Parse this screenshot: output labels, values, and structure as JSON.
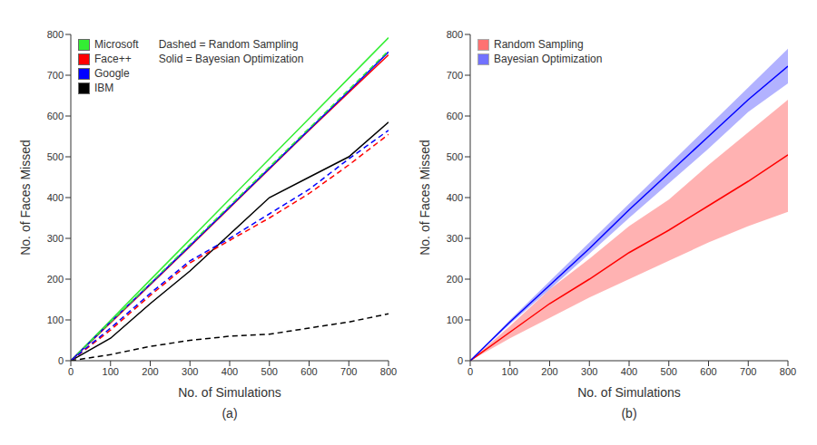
{
  "chart_data": [
    {
      "type": "line",
      "caption": "(a)",
      "x_label": "No. of Simulations",
      "y_label": "No. of Faces Missed",
      "x": [
        0,
        100,
        200,
        300,
        400,
        500,
        600,
        700,
        800
      ],
      "xlim": [
        0,
        800
      ],
      "ylim": [
        0,
        800
      ],
      "xticks": [
        0,
        100,
        200,
        300,
        400,
        500,
        600,
        700,
        800
      ],
      "yticks": [
        0,
        100,
        200,
        300,
        400,
        500,
        600,
        700,
        800
      ],
      "grid": false,
      "legend": "upper left",
      "legend_notes": [
        "Dashed = Random Sampling",
        "Solid = Bayesian Optimization"
      ],
      "series": [
        {
          "name": "Microsoft",
          "color": "#33ee33",
          "line_style": "solid",
          "values": [
            0,
            99,
            198,
            297,
            396,
            495,
            594,
            693,
            792
          ]
        },
        {
          "name": "Face++",
          "color": "#ff0000",
          "line_style": "solid",
          "values": [
            0,
            93,
            186,
            280,
            375,
            470,
            565,
            658,
            750
          ]
        },
        {
          "name": "Google",
          "color": "#0000ff",
          "line_style": "solid",
          "values": [
            0,
            95,
            188,
            282,
            377,
            472,
            567,
            661,
            757
          ]
        },
        {
          "name": "IBM",
          "color": "#000000",
          "line_style": "solid",
          "values": [
            0,
            55,
            140,
            220,
            310,
            400,
            450,
            500,
            585
          ]
        },
        {
          "name": "Microsoft",
          "color": "#33ee33",
          "line_style": "dashed",
          "values": [
            0,
            95,
            190,
            285,
            380,
            475,
            570,
            665,
            760
          ]
        },
        {
          "name": "Face++",
          "color": "#ff0000",
          "line_style": "dashed",
          "values": [
            0,
            75,
            160,
            240,
            295,
            350,
            410,
            480,
            555
          ]
        },
        {
          "name": "Google",
          "color": "#0000ff",
          "line_style": "dashed",
          "values": [
            0,
            80,
            165,
            245,
            300,
            360,
            420,
            495,
            565
          ]
        },
        {
          "name": "IBM",
          "color": "#000000",
          "line_style": "dashed",
          "values": [
            0,
            15,
            35,
            50,
            60,
            65,
            80,
            95,
            115
          ]
        }
      ]
    },
    {
      "type": "line",
      "caption": "(b)",
      "x_label": "No. of Simulations",
      "y_label": "No. of Faces Missed",
      "x": [
        0,
        100,
        200,
        300,
        400,
        500,
        600,
        700,
        800
      ],
      "xlim": [
        0,
        800
      ],
      "ylim": [
        0,
        800
      ],
      "xticks": [
        0,
        100,
        200,
        300,
        400,
        500,
        600,
        700,
        800
      ],
      "yticks": [
        0,
        100,
        200,
        300,
        400,
        500,
        600,
        700,
        800
      ],
      "grid": false,
      "legend": "upper left",
      "series": [
        {
          "name": "Random Sampling",
          "color": "#ff0000",
          "line_style": "solid",
          "values": [
            0,
            70,
            140,
            200,
            265,
            320,
            380,
            440,
            505
          ],
          "lower": [
            0,
            55,
            105,
            155,
            200,
            245,
            290,
            330,
            365
          ],
          "upper": [
            0,
            85,
            175,
            250,
            330,
            395,
            480,
            560,
            640
          ]
        },
        {
          "name": "Bayesian Optimization",
          "color": "#0000ff",
          "line_style": "solid",
          "values": [
            0,
            95,
            185,
            275,
            370,
            460,
            550,
            640,
            722
          ],
          "lower": [
            0,
            90,
            175,
            262,
            350,
            435,
            520,
            610,
            680
          ],
          "upper": [
            0,
            100,
            195,
            290,
            385,
            480,
            575,
            670,
            765
          ]
        }
      ]
    }
  ]
}
